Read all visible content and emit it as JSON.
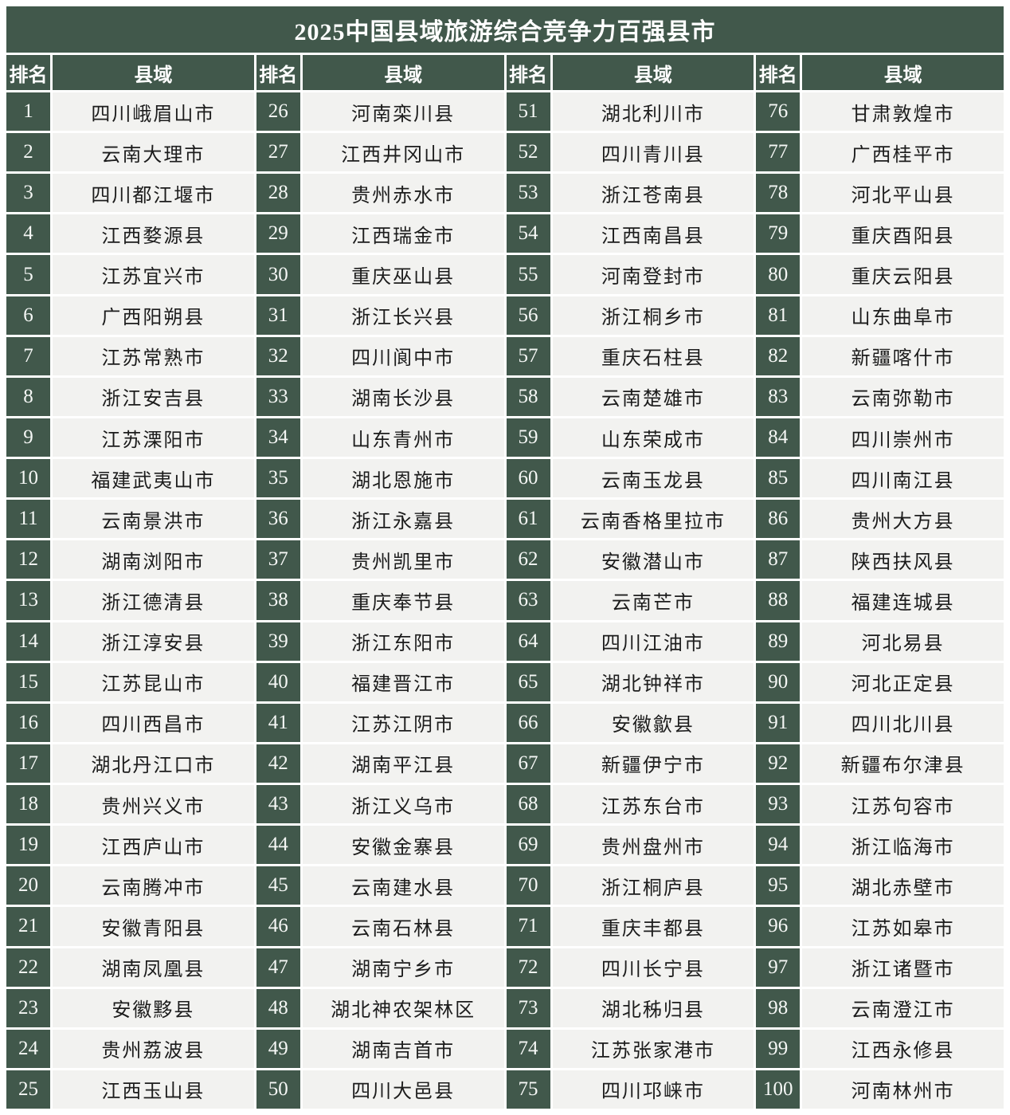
{
  "title": "2025中国县域旅游综合竞争力百强县市",
  "column_headers": {
    "rank": "排名",
    "county": "县域"
  },
  "colors": {
    "header_green": "#41584b",
    "cell_bg": "#f2f2f0",
    "gap_white": "#ffffff",
    "title_text": "#ffffff",
    "body_text": "#1c1c1c"
  },
  "chart_data": {
    "type": "table",
    "title": "2025中国县域旅游综合竞争力百强县市",
    "columns": [
      "排名",
      "县域",
      "排名",
      "县域",
      "排名",
      "县域",
      "排名",
      "县域"
    ],
    "column_groups": 4,
    "rows_per_group": 25,
    "entries": [
      {
        "rank": 1,
        "county": "四川峨眉山市"
      },
      {
        "rank": 2,
        "county": "云南大理市"
      },
      {
        "rank": 3,
        "county": "四川都江堰市"
      },
      {
        "rank": 4,
        "county": "江西婺源县"
      },
      {
        "rank": 5,
        "county": "江苏宜兴市"
      },
      {
        "rank": 6,
        "county": "广西阳朔县"
      },
      {
        "rank": 7,
        "county": "江苏常熟市"
      },
      {
        "rank": 8,
        "county": "浙江安吉县"
      },
      {
        "rank": 9,
        "county": "江苏溧阳市"
      },
      {
        "rank": 10,
        "county": "福建武夷山市"
      },
      {
        "rank": 11,
        "county": "云南景洪市"
      },
      {
        "rank": 12,
        "county": "湖南浏阳市"
      },
      {
        "rank": 13,
        "county": "浙江德清县"
      },
      {
        "rank": 14,
        "county": "浙江淳安县"
      },
      {
        "rank": 15,
        "county": "江苏昆山市"
      },
      {
        "rank": 16,
        "county": "四川西昌市"
      },
      {
        "rank": 17,
        "county": "湖北丹江口市"
      },
      {
        "rank": 18,
        "county": "贵州兴义市"
      },
      {
        "rank": 19,
        "county": "江西庐山市"
      },
      {
        "rank": 20,
        "county": "云南腾冲市"
      },
      {
        "rank": 21,
        "county": "安徽青阳县"
      },
      {
        "rank": 22,
        "county": "湖南凤凰县"
      },
      {
        "rank": 23,
        "county": "安徽黟县"
      },
      {
        "rank": 24,
        "county": "贵州荔波县"
      },
      {
        "rank": 25,
        "county": "江西玉山县"
      },
      {
        "rank": 26,
        "county": "河南栾川县"
      },
      {
        "rank": 27,
        "county": "江西井冈山市"
      },
      {
        "rank": 28,
        "county": "贵州赤水市"
      },
      {
        "rank": 29,
        "county": "江西瑞金市"
      },
      {
        "rank": 30,
        "county": "重庆巫山县"
      },
      {
        "rank": 31,
        "county": "浙江长兴县"
      },
      {
        "rank": 32,
        "county": "四川阆中市"
      },
      {
        "rank": 33,
        "county": "湖南长沙县"
      },
      {
        "rank": 34,
        "county": "山东青州市"
      },
      {
        "rank": 35,
        "county": "湖北恩施市"
      },
      {
        "rank": 36,
        "county": "浙江永嘉县"
      },
      {
        "rank": 37,
        "county": "贵州凯里市"
      },
      {
        "rank": 38,
        "county": "重庆奉节县"
      },
      {
        "rank": 39,
        "county": "浙江东阳市"
      },
      {
        "rank": 40,
        "county": "福建晋江市"
      },
      {
        "rank": 41,
        "county": "江苏江阴市"
      },
      {
        "rank": 42,
        "county": "湖南平江县"
      },
      {
        "rank": 43,
        "county": "浙江义乌市"
      },
      {
        "rank": 44,
        "county": "安徽金寨县"
      },
      {
        "rank": 45,
        "county": "云南建水县"
      },
      {
        "rank": 46,
        "county": "云南石林县"
      },
      {
        "rank": 47,
        "county": "湖南宁乡市"
      },
      {
        "rank": 48,
        "county": "湖北神农架林区"
      },
      {
        "rank": 49,
        "county": "湖南吉首市"
      },
      {
        "rank": 50,
        "county": "四川大邑县"
      },
      {
        "rank": 51,
        "county": "湖北利川市"
      },
      {
        "rank": 52,
        "county": "四川青川县"
      },
      {
        "rank": 53,
        "county": "浙江苍南县"
      },
      {
        "rank": 54,
        "county": "江西南昌县"
      },
      {
        "rank": 55,
        "county": "河南登封市"
      },
      {
        "rank": 56,
        "county": "浙江桐乡市"
      },
      {
        "rank": 57,
        "county": "重庆石柱县"
      },
      {
        "rank": 58,
        "county": "云南楚雄市"
      },
      {
        "rank": 59,
        "county": "山东荣成市"
      },
      {
        "rank": 60,
        "county": "云南玉龙县"
      },
      {
        "rank": 61,
        "county": "云南香格里拉市"
      },
      {
        "rank": 62,
        "county": "安徽潜山市"
      },
      {
        "rank": 63,
        "county": "云南芒市"
      },
      {
        "rank": 64,
        "county": "四川江油市"
      },
      {
        "rank": 65,
        "county": "湖北钟祥市"
      },
      {
        "rank": 66,
        "county": "安徽歙县"
      },
      {
        "rank": 67,
        "county": "新疆伊宁市"
      },
      {
        "rank": 68,
        "county": "江苏东台市"
      },
      {
        "rank": 69,
        "county": "贵州盘州市"
      },
      {
        "rank": 70,
        "county": "浙江桐庐县"
      },
      {
        "rank": 71,
        "county": "重庆丰都县"
      },
      {
        "rank": 72,
        "county": "四川长宁县"
      },
      {
        "rank": 73,
        "county": "湖北秭归县"
      },
      {
        "rank": 74,
        "county": "江苏张家港市"
      },
      {
        "rank": 75,
        "county": "四川邛崃市"
      },
      {
        "rank": 76,
        "county": "甘肃敦煌市"
      },
      {
        "rank": 77,
        "county": "广西桂平市"
      },
      {
        "rank": 78,
        "county": "河北平山县"
      },
      {
        "rank": 79,
        "county": "重庆酉阳县"
      },
      {
        "rank": 80,
        "county": "重庆云阳县"
      },
      {
        "rank": 81,
        "county": "山东曲阜市"
      },
      {
        "rank": 82,
        "county": "新疆喀什市"
      },
      {
        "rank": 83,
        "county": "云南弥勒市"
      },
      {
        "rank": 84,
        "county": "四川崇州市"
      },
      {
        "rank": 85,
        "county": "四川南江县"
      },
      {
        "rank": 86,
        "county": "贵州大方县"
      },
      {
        "rank": 87,
        "county": "陕西扶风县"
      },
      {
        "rank": 88,
        "county": "福建连城县"
      },
      {
        "rank": 89,
        "county": "河北易县"
      },
      {
        "rank": 90,
        "county": "河北正定县"
      },
      {
        "rank": 91,
        "county": "四川北川县"
      },
      {
        "rank": 92,
        "county": "新疆布尔津县"
      },
      {
        "rank": 93,
        "county": "江苏句容市"
      },
      {
        "rank": 94,
        "county": "浙江临海市"
      },
      {
        "rank": 95,
        "county": "湖北赤壁市"
      },
      {
        "rank": 96,
        "county": "江苏如皋市"
      },
      {
        "rank": 97,
        "county": "浙江诸暨市"
      },
      {
        "rank": 98,
        "county": "云南澄江市"
      },
      {
        "rank": 99,
        "county": "江西永修县"
      },
      {
        "rank": 100,
        "county": "河南林州市"
      }
    ]
  }
}
